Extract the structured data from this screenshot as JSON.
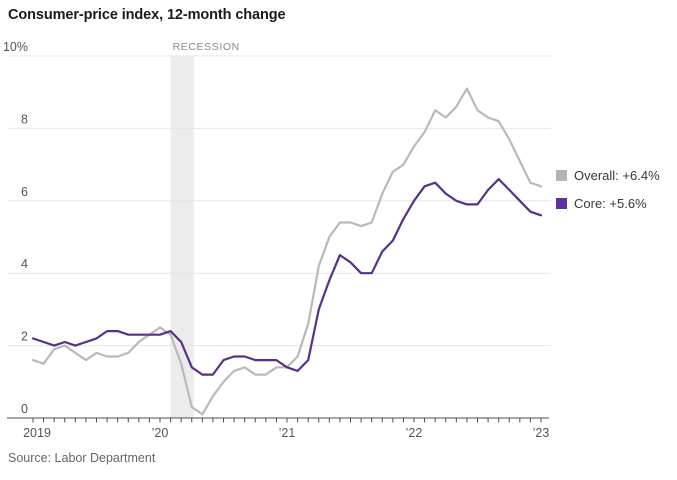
{
  "title": "Consumer-price index, 12-month change",
  "source": "Source: Labor Department",
  "legend": {
    "overall": "Overall: +6.4%",
    "core": "Core: +5.6%"
  },
  "colors": {
    "overall_line": "#b9b9b9",
    "overall_swatch": "#b3b3b3",
    "core_line": "#553189",
    "core_swatch": "#5b339b",
    "grid": "#e6e6e6",
    "axis": "#4d4d4d",
    "tick_label": "#555555",
    "band": "#ececec",
    "recession_text": "#8a8a8a"
  },
  "chart_data": {
    "type": "line",
    "title": "Consumer-price index, 12-month change",
    "x_start": "2019-01",
    "x_end": "2023-01",
    "frequency": "monthly",
    "ylim": [
      0,
      10
    ],
    "grid": "horizontal",
    "legend_position": "right-of-line-ends",
    "y_ticks": [
      0,
      2,
      4,
      6,
      8,
      10
    ],
    "y_tick_labels": [
      "0",
      "2",
      "4",
      "6",
      "8",
      "10%"
    ],
    "x_tick_label_indices": [
      0,
      12,
      24,
      36,
      48
    ],
    "x_tick_labels": [
      "2019",
      "’20",
      "’21",
      "’22",
      "’23"
    ],
    "recession": {
      "label": "RECESSION",
      "start_month_index": 13,
      "end_month_index": 15
    },
    "series": [
      {
        "name": "Overall",
        "end_label": "Overall: +6.4%",
        "last_value": 6.4,
        "values": [
          1.6,
          1.5,
          1.9,
          2.0,
          1.8,
          1.6,
          1.8,
          1.7,
          1.7,
          1.8,
          2.1,
          2.3,
          2.5,
          2.3,
          1.5,
          0.3,
          0.1,
          0.6,
          1.0,
          1.3,
          1.4,
          1.2,
          1.2,
          1.4,
          1.4,
          1.7,
          2.6,
          4.2,
          5.0,
          5.4,
          5.4,
          5.3,
          5.4,
          6.2,
          6.8,
          7.0,
          7.5,
          7.9,
          8.5,
          8.3,
          8.6,
          9.1,
          8.5,
          8.3,
          8.2,
          7.7,
          7.1,
          6.5,
          6.4
        ]
      },
      {
        "name": "Core",
        "end_label": "Core: +5.6%",
        "last_value": 5.6,
        "values": [
          2.2,
          2.1,
          2.0,
          2.1,
          2.0,
          2.1,
          2.2,
          2.4,
          2.4,
          2.3,
          2.3,
          2.3,
          2.3,
          2.4,
          2.1,
          1.4,
          1.2,
          1.2,
          1.6,
          1.7,
          1.7,
          1.6,
          1.6,
          1.6,
          1.4,
          1.3,
          1.6,
          3.0,
          3.8,
          4.5,
          4.3,
          4.0,
          4.0,
          4.6,
          4.9,
          5.5,
          6.0,
          6.4,
          6.5,
          6.2,
          6.0,
          5.9,
          5.9,
          6.3,
          6.6,
          6.3,
          6.0,
          5.7,
          5.6
        ]
      }
    ],
    "source": "Source: Labor Department"
  }
}
